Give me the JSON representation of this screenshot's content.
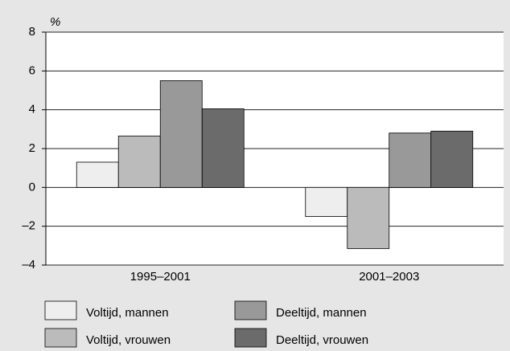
{
  "chart_data": {
    "type": "bar",
    "y_unit": "%",
    "categories": [
      "1995–2001",
      "2001–2003"
    ],
    "series": [
      {
        "name": "Voltijd, mannen",
        "color": "#eeeeee",
        "values": [
          1.3,
          -1.5
        ]
      },
      {
        "name": "Voltijd, vrouwen",
        "color": "#bbbbbc",
        "values": [
          2.65,
          -3.15
        ]
      },
      {
        "name": "Deeltijd, mannen",
        "color": "#999999",
        "values": [
          5.5,
          2.8
        ]
      },
      {
        "name": "Deeltijd, vrouwen",
        "color": "#6b6b6b",
        "values": [
          4.05,
          2.9
        ]
      }
    ],
    "ylim": [
      -4,
      8
    ],
    "yticks": [
      {
        "value": -4,
        "label": "–4"
      },
      {
        "value": -2,
        "label": "–2"
      },
      0,
      2,
      4,
      6,
      8
    ],
    "grid": true,
    "legend": "bottom"
  }
}
